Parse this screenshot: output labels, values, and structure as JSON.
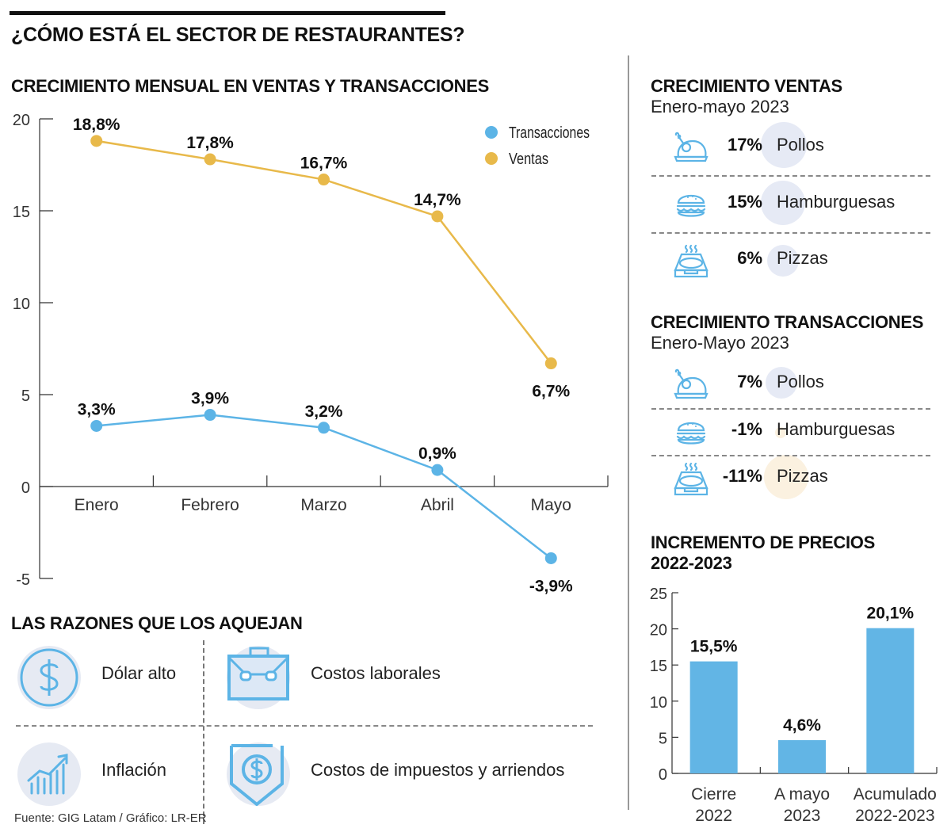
{
  "header": {
    "title": "¿CÓMO ESTÁ EL SECTOR DE RESTAURANTES?"
  },
  "colors": {
    "ventas": "#e8b94a",
    "transacciones": "#5cb4e6",
    "bar": "#62b5e5",
    "icon_stroke": "#5cb4e6",
    "bubble_blue": "#e6eaf5",
    "bubble_orange": "#fbf1e0",
    "text": "#111111"
  },
  "chart_data": [
    {
      "id": "monthly",
      "type": "line",
      "title": "CRECIMIENTO MENSUAL EN VENTAS Y TRANSACCIONES",
      "categories": [
        "Enero",
        "Febrero",
        "Marzo",
        "Abril",
        "Mayo"
      ],
      "series": [
        {
          "name": "Ventas",
          "values": [
            18.8,
            17.8,
            16.7,
            14.7,
            6.7
          ],
          "labels": [
            "18,8%",
            "17,8%",
            "16,7%",
            "14,7%",
            "6,7%"
          ]
        },
        {
          "name": "Transacciones",
          "values": [
            3.3,
            3.9,
            3.2,
            0.9,
            -3.9
          ],
          "labels": [
            "3,3%",
            "3,9%",
            "3,2%",
            "0,9%",
            "-3,9%"
          ]
        }
      ],
      "legend": [
        "Transacciones",
        "Ventas"
      ],
      "legend_position": "top-right",
      "yticks": [
        20,
        15,
        10,
        5,
        0,
        -5
      ],
      "ylim": [
        -5,
        20
      ],
      "xlabel": "",
      "ylabel": "",
      "grid": false
    },
    {
      "id": "precios",
      "type": "bar",
      "title": "INCREMENTO DE PRECIOS",
      "subtitle": "2022-2023",
      "categories": [
        [
          "Cierre",
          "2022"
        ],
        [
          "A mayo",
          "2023"
        ],
        [
          "Acumulado",
          "2022-2023"
        ]
      ],
      "values": [
        15.5,
        4.6,
        20.1
      ],
      "labels": [
        "15,5%",
        "4,6%",
        "20,1%"
      ],
      "yticks": [
        25,
        20,
        15,
        10,
        5,
        0
      ],
      "ylim": [
        0,
        25
      ],
      "xlabel": "",
      "ylabel": "",
      "grid": false
    }
  ],
  "ventas_panel": {
    "title": "CRECIMIENTO VENTAS",
    "subtitle": "Enero-mayo 2023",
    "items": [
      {
        "icon": "chicken-icon",
        "pct": "17%",
        "value": 17,
        "label": "Pollos"
      },
      {
        "icon": "burger-icon",
        "pct": "15%",
        "value": 15,
        "label": "Hamburguesas"
      },
      {
        "icon": "pizza-box-icon",
        "pct": "6%",
        "value": 6,
        "label": "Pizzas"
      }
    ]
  },
  "transacciones_panel": {
    "title": "CRECIMIENTO TRANSACCIONES",
    "subtitle": "Enero-Mayo 2023",
    "items": [
      {
        "icon": "chicken-icon",
        "pct": "7%",
        "value": 7,
        "label": "Pollos"
      },
      {
        "icon": "burger-icon",
        "pct": "-1%",
        "value": -1,
        "label": "Hamburguesas"
      },
      {
        "icon": "pizza-box-icon",
        "pct": "-11%",
        "value": -11,
        "label": "Pizzas"
      }
    ]
  },
  "reasons": {
    "title": "LAS RAZONES QUE LOS AQUEJAN",
    "items": [
      {
        "icon": "dollar-coin-icon",
        "label": "Dólar alto"
      },
      {
        "icon": "briefcase-icon",
        "label": "Costos laborales"
      },
      {
        "icon": "growth-chart-icon",
        "label": "Inflación"
      },
      {
        "icon": "shield-dollar-icon",
        "label": "Costos de impuestos y arriendos"
      }
    ]
  },
  "footer": {
    "source": "Fuente: GIG Latam / Gráfico: LR-ER"
  }
}
